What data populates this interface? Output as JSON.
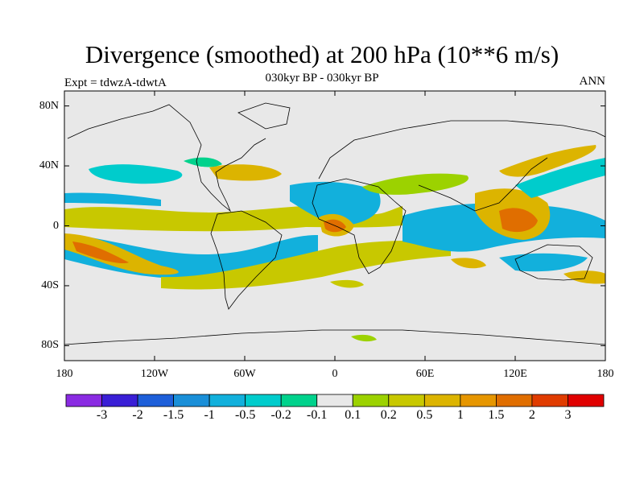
{
  "title": "Divergence (smoothed) at 200 hPa (10**6 m/s)",
  "subtitle": "030kyr BP - 030kyr BP",
  "expt_label": "Expt = tdwzA-tdwtA",
  "season": "ANN",
  "lat_ticks": [
    {
      "label": "80N",
      "value": 80
    },
    {
      "label": "40N",
      "value": 40
    },
    {
      "label": "0",
      "value": 0
    },
    {
      "label": "40S",
      "value": -40
    },
    {
      "label": "80S",
      "value": -80
    }
  ],
  "lon_ticks": [
    {
      "label": "180",
      "value": -180
    },
    {
      "label": "120W",
      "value": -120
    },
    {
      "label": "60W",
      "value": -60
    },
    {
      "label": "0",
      "value": 0
    },
    {
      "label": "60E",
      "value": 60
    },
    {
      "label": "120E",
      "value": 120
    },
    {
      "label": "180",
      "value": 180
    }
  ],
  "colorbar": {
    "colors": [
      "#8a2be2",
      "#3a1fd6",
      "#1e5fd9",
      "#1a8fd8",
      "#12b0dc",
      "#00cccc",
      "#00d28c",
      "#e8e8e8",
      "#9cd200",
      "#c8c800",
      "#dcb400",
      "#e69600",
      "#e06e00",
      "#e03c00",
      "#e00000"
    ],
    "labels": [
      "-3",
      "-2",
      "-1.5",
      "-1",
      "-0.5",
      "-0.2",
      "-0.1",
      "0.1",
      "0.2",
      "0.5",
      "1",
      "1.5",
      "2",
      "3"
    ]
  },
  "colors": {
    "background": "#e8e8e8",
    "coastline": "#000000"
  }
}
